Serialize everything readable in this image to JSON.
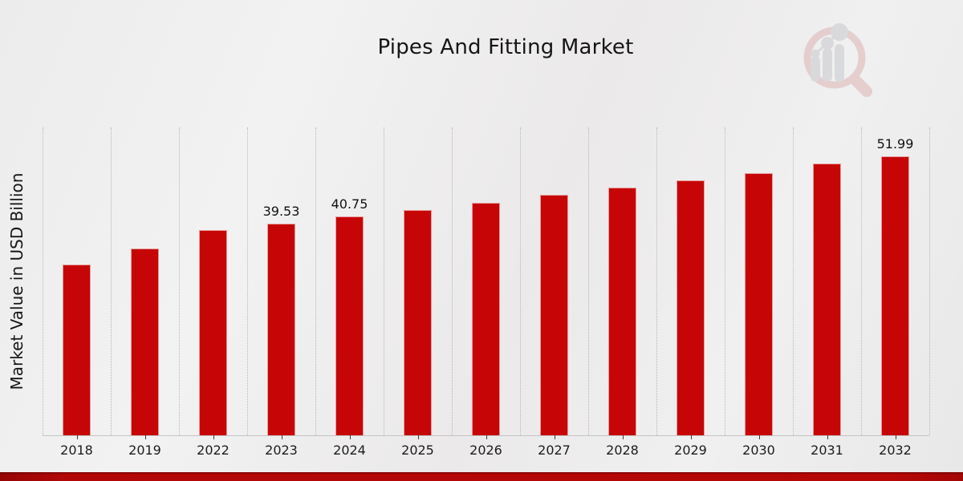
{
  "header": {
    "title": "Pipes And Fitting Market"
  },
  "branding": {
    "logo_icon": "magnifier-bar-chart-logo",
    "logo_ring_color": "#d9a6a6",
    "logo_bars_color": "#bfc0c7",
    "logo_opacity": 0.45
  },
  "colors": {
    "bar": "#c60606",
    "bar_edge": "rgba(255,255,255,0.6)",
    "background": "#ededed",
    "gridline": "#b7b7b7",
    "axis_line": "#c4c4c4",
    "tick": "#3c3c3c",
    "text": "#161616",
    "bottom_band": "#b30707"
  },
  "chart_data": {
    "type": "bar",
    "title": "Pipes And Fitting Market",
    "xlabel": "",
    "ylabel": "Market Value in USD Billion",
    "categories": [
      "2018",
      "2019",
      "2022",
      "2023",
      "2024",
      "2025",
      "2026",
      "2027",
      "2028",
      "2029",
      "2030",
      "2031",
      "2032"
    ],
    "values": [
      31.9,
      34.9,
      38.3,
      39.53,
      40.75,
      42.0,
      43.4,
      44.9,
      46.2,
      47.5,
      48.9,
      50.6,
      51.99
    ],
    "data_labels": [
      "",
      "",
      "",
      "39.53",
      "40.75",
      "",
      "",
      "",
      "",
      "",
      "",
      "",
      "51.99"
    ],
    "ylim": [
      0,
      57.4
    ],
    "grid": "vertical-dotted",
    "legend": "none",
    "bar_color": "#c60606"
  }
}
